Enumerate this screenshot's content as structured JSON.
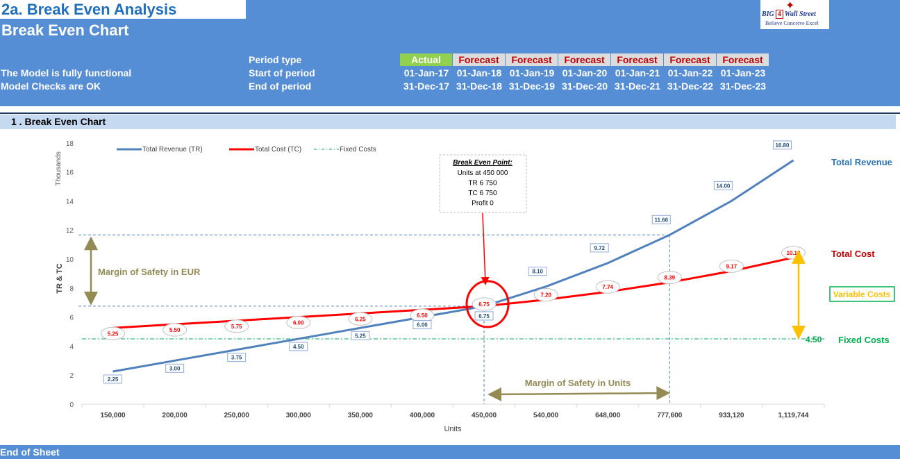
{
  "header": {
    "title": "2a. Break Even Analysis",
    "subtitle": "Break Even Chart",
    "status1": "The Model is fully functional",
    "status2": "Model Checks are OK",
    "row_labels": [
      "Period type",
      "Start of period",
      "End of period"
    ],
    "periods": [
      {
        "type": "Actual",
        "start": "01-Jan-17",
        "end": "31-Dec-17"
      },
      {
        "type": "Forecast",
        "start": "01-Jan-18",
        "end": "31-Dec-18"
      },
      {
        "type": "Forecast",
        "start": "01-Jan-19",
        "end": "31-Dec-19"
      },
      {
        "type": "Forecast",
        "start": "01-Jan-20",
        "end": "31-Dec-20"
      },
      {
        "type": "Forecast",
        "start": "01-Jan-21",
        "end": "31-Dec-21"
      },
      {
        "type": "Forecast",
        "start": "01-Jan-22",
        "end": "31-Dec-22"
      },
      {
        "type": "Forecast",
        "start": "01-Jan-23",
        "end": "31-Dec-23"
      }
    ],
    "logo": {
      "big": "BIG",
      "four": "4",
      "street": "Wall Street",
      "tagline": "Believe Conceive Excel"
    }
  },
  "section": {
    "title": "1 .  Break Even Chart"
  },
  "footer": {
    "text": "End of Sheet"
  },
  "colors": {
    "header_bg": "#558ed5",
    "revenue": "#4f81bd",
    "cost": "#ff0000",
    "fixed": "#00b050",
    "actual": "#92d050",
    "olive": "#948a54",
    "orange": "#ffc000"
  },
  "chart_data": {
    "type": "line",
    "categories": [
      "150,000",
      "200,000",
      "250,000",
      "300,000",
      "350,000",
      "400,000",
      "450,000",
      "540,000",
      "648,000",
      "777,600",
      "933,120",
      "1,119,744"
    ],
    "series": [
      {
        "name": "Total Revenue (TR)",
        "values": [
          2.25,
          3.0,
          3.75,
          4.5,
          5.25,
          6.0,
          6.75,
          8.1,
          9.72,
          11.66,
          14.0,
          16.8
        ],
        "labels": [
          "2.25",
          "3.00",
          "3.75",
          "4.50",
          "5.25",
          "6.00",
          "6.75",
          "8.10",
          "9.72",
          "11.66",
          "14.00",
          "16.80"
        ]
      },
      {
        "name": "Total Cost (TC)",
        "values": [
          5.25,
          5.5,
          5.75,
          6.0,
          6.25,
          6.5,
          6.75,
          7.2,
          7.74,
          8.39,
          9.17,
          10.1
        ],
        "labels": [
          "5.25",
          "5.50",
          "5.75",
          "6.00",
          "6.25",
          "6.50",
          "6.75",
          "7.20",
          "7.74",
          "8.39",
          "9.17",
          "10.10"
        ]
      },
      {
        "name": "Fixed Costs",
        "values": [
          4.5,
          4.5,
          4.5,
          4.5,
          4.5,
          4.5,
          4.5,
          4.5,
          4.5,
          4.5,
          4.5,
          4.5
        ]
      }
    ],
    "yticks": [
      "0",
      "2",
      "4",
      "6",
      "8",
      "10",
      "12",
      "14",
      "16",
      "18"
    ],
    "ylim": [
      0,
      18
    ],
    "ylabel": "TR & TC",
    "yunit": "Thousands",
    "xlabel": "Units",
    "break_even_index": 6,
    "safety_index": 9,
    "fixed_level": 4.5,
    "annotations": {
      "be_title": "Break Even Point:",
      "be_lines": [
        "Units at 450 000",
        "TR 6 750",
        "TC 6 750",
        "Profit 0"
      ],
      "margin_eur": "Margin of Safety in EUR",
      "margin_units": "Margin of Safety in Units",
      "total_revenue": "Total Revenue",
      "total_cost": "Total Cost",
      "variable_costs": "Variable Costs",
      "fixed_costs": "Fixed Costs",
      "fixed_value": "4.50"
    }
  }
}
